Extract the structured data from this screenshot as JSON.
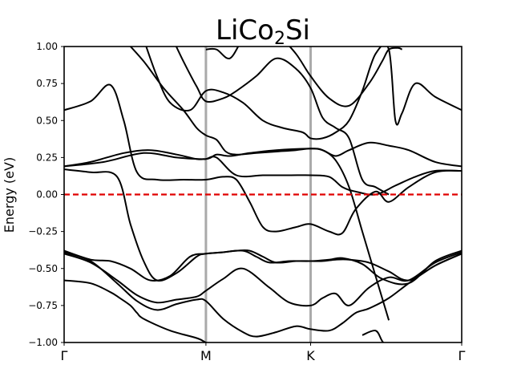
{
  "chart_data": {
    "type": "line",
    "title": "LiCo",
    "title_sub": "2",
    "title_tail": "Si",
    "ylabel": "Energy (eV)",
    "xlabel": "",
    "xlim": [
      0,
      3
    ],
    "ylim": [
      -1.0,
      1.0
    ],
    "yticks": [
      -1.0,
      -0.75,
      -0.5,
      -0.25,
      0.0,
      0.25,
      0.5,
      0.75,
      1.0
    ],
    "ytick_labels": [
      "−1.00",
      "−0.75",
      "−0.50",
      "−0.25",
      "0.00",
      "0.25",
      "0.50",
      "0.75",
      "1.00"
    ],
    "kpoints": [
      {
        "label": "Γ",
        "x": 0
      },
      {
        "label": "M",
        "x": 1.07
      },
      {
        "label": "K",
        "x": 1.86
      },
      {
        "label": "Γ",
        "x": 3
      }
    ],
    "fermi_level": 0.0,
    "colors": {
      "bands": "#000000",
      "fermi": "#e00000",
      "kline": "#aaaaaa"
    },
    "series": [
      {
        "x": [
          0,
          0.2,
          0.35,
          0.42,
          0.5,
          0.55,
          0.6,
          0.8,
          1.0,
          1.07,
          1.2,
          1.4,
          1.6,
          1.86,
          2.0,
          2.15,
          2.3,
          2.5,
          2.7,
          2.85,
          3.0
        ],
        "y": [
          -0.58,
          -0.6,
          -0.66,
          -0.7,
          -0.75,
          -0.8,
          -0.84,
          -0.92,
          -0.97,
          -1.0,
          -1.05,
          -1.1,
          -1.1,
          -1.1,
          -1.1,
          -1.1,
          -1.1,
          -1.1,
          -1.1,
          -1.1,
          -1.1
        ]
      },
      {
        "x": [
          0,
          0.2,
          0.4,
          0.55,
          0.7,
          0.85,
          1.0,
          1.07,
          1.2,
          1.35,
          1.45,
          1.6,
          1.75,
          1.86,
          2.0,
          2.1,
          2.2,
          2.3,
          2.45,
          2.6,
          2.8,
          3.0
        ],
        "y": [
          -0.39,
          -0.45,
          -0.6,
          -0.72,
          -0.78,
          -0.74,
          -0.71,
          -0.72,
          -0.84,
          -0.93,
          -0.96,
          -0.93,
          -0.89,
          -0.91,
          -0.92,
          -0.87,
          -0.8,
          -0.77,
          -0.7,
          -0.6,
          -0.48,
          -0.4
        ]
      },
      {
        "x": [
          0,
          0.2,
          0.4,
          0.55,
          0.7,
          0.85,
          1.0,
          1.07,
          1.2,
          1.35,
          1.55,
          1.7,
          1.86,
          1.95,
          2.05,
          2.15,
          2.3,
          2.45,
          2.6,
          2.8,
          3.0
        ],
        "y": [
          -0.4,
          -0.46,
          -0.58,
          -0.68,
          -0.73,
          -0.71,
          -0.69,
          -0.65,
          -0.57,
          -0.5,
          -0.63,
          -0.73,
          -0.75,
          -0.7,
          -0.67,
          -0.75,
          -0.63,
          -0.56,
          -0.58,
          -0.46,
          -0.39
        ]
      },
      {
        "x": [
          0,
          0.2,
          0.35,
          0.5,
          0.65,
          0.8,
          0.95,
          1.07,
          1.2,
          1.35,
          1.45,
          1.55,
          1.7,
          1.86,
          2.0,
          2.1,
          2.25,
          2.4,
          2.6,
          2.8,
          3.0
        ],
        "y": [
          -0.38,
          -0.44,
          -0.45,
          -0.5,
          -0.58,
          -0.55,
          -0.42,
          -0.4,
          -0.39,
          -0.38,
          -0.42,
          -0.46,
          -0.45,
          -0.45,
          -0.44,
          -0.43,
          -0.47,
          -0.57,
          -0.6,
          -0.45,
          -0.38
        ]
      },
      {
        "x": [
          0,
          0.2,
          0.4,
          0.5,
          0.6,
          0.7,
          0.85,
          1.0,
          1.07,
          1.2,
          1.3,
          1.4,
          1.5,
          1.6,
          1.75,
          1.86,
          1.95,
          2.05,
          2.15,
          2.3,
          2.45,
          2.6,
          2.8,
          3.0
        ],
        "y": [
          0.17,
          0.15,
          0.12,
          -0.2,
          -0.45,
          -0.58,
          -0.53,
          -0.42,
          -0.4,
          -0.39,
          -0.38,
          -0.38,
          -0.42,
          -0.46,
          -0.45,
          -0.45,
          -0.45,
          -0.44,
          -0.44,
          -0.46,
          -0.52,
          -0.58,
          -0.48,
          -0.4
        ]
      },
      {
        "x": [
          0,
          0.2,
          0.35,
          0.45,
          0.55,
          0.7,
          0.9,
          1.07,
          1.2,
          1.3,
          1.4,
          1.5,
          1.6,
          1.75,
          1.86,
          2.0,
          2.1,
          2.2,
          2.35,
          2.45,
          2.6,
          2.8,
          3.0
        ],
        "y": [
          0.57,
          0.63,
          0.74,
          0.5,
          0.15,
          0.1,
          0.1,
          0.1,
          0.12,
          0.1,
          -0.05,
          -0.22,
          -0.25,
          -0.22,
          -0.2,
          -0.25,
          -0.26,
          -0.1,
          0.02,
          -0.05,
          0.05,
          0.15,
          0.16
        ]
      },
      {
        "x": [
          0,
          0.2,
          0.45,
          0.65,
          0.85,
          1.0,
          1.07,
          1.15,
          1.3,
          1.5,
          1.7,
          1.86,
          2.0,
          2.1,
          2.2,
          2.35,
          2.5,
          2.65,
          2.8,
          3.0
        ],
        "y": [
          0.19,
          0.22,
          0.28,
          0.3,
          0.27,
          0.24,
          0.24,
          0.25,
          0.13,
          0.13,
          0.13,
          0.13,
          0.12,
          0.05,
          0.02,
          0.0,
          0.06,
          0.12,
          0.16,
          0.16
        ]
      },
      {
        "x": [
          0,
          0.3,
          0.6,
          0.85,
          1.07,
          1.15,
          1.25,
          1.4,
          1.6,
          1.86,
          1.95,
          2.05,
          2.15,
          2.3,
          2.45,
          2.6,
          2.8,
          3.0
        ],
        "y": [
          0.19,
          0.22,
          0.28,
          0.25,
          0.24,
          0.27,
          0.26,
          0.28,
          0.3,
          0.31,
          0.3,
          0.26,
          0.3,
          0.35,
          0.33,
          0.3,
          0.22,
          0.19
        ]
      },
      {
        "x": [
          0.45,
          0.6,
          0.75,
          0.9,
          1.0,
          1.07,
          1.15,
          1.22,
          1.3,
          1.45,
          1.6,
          1.75,
          1.86,
          1.95,
          2.05,
          2.15,
          2.25,
          2.35,
          2.45
        ],
        "y": [
          1.05,
          0.9,
          0.72,
          0.57,
          0.45,
          0.4,
          0.37,
          0.29,
          0.27,
          0.28,
          0.29,
          0.3,
          0.31,
          0.3,
          0.23,
          0.05,
          -0.25,
          -0.55,
          -0.85
        ]
      },
      {
        "x": [
          0.6,
          0.7,
          0.8,
          0.95,
          1.07,
          1.2,
          1.35,
          1.5,
          1.65,
          1.8,
          1.86,
          1.95,
          2.05,
          2.15,
          2.25,
          2.35,
          2.45,
          2.5,
          2.55,
          2.65,
          2.8,
          3.0
        ],
        "y": [
          1.05,
          0.8,
          0.62,
          0.57,
          0.7,
          0.69,
          0.62,
          0.5,
          0.45,
          0.42,
          0.38,
          0.38,
          0.42,
          0.5,
          0.7,
          0.95,
          0.98,
          0.5,
          0.55,
          0.75,
          0.66,
          0.57
        ]
      },
      {
        "x": [
          0.82,
          0.9,
          1.0,
          1.07,
          1.2,
          1.3,
          1.45,
          1.6,
          1.75,
          1.86,
          1.95,
          2.05,
          2.15,
          2.25,
          2.35,
          2.45
        ],
        "y": [
          1.05,
          0.9,
          0.73,
          0.63,
          0.65,
          0.7,
          0.8,
          0.92,
          0.85,
          0.72,
          0.52,
          0.45,
          0.38,
          0.1,
          0.05,
          0.0
        ]
      },
      {
        "x": [
          1.07,
          1.15,
          1.25,
          1.35,
          1.45
        ],
        "y": [
          0.98,
          0.98,
          0.92,
          1.05,
          1.1
        ]
      },
      {
        "x": [
          1.6,
          1.75,
          1.86,
          2.0,
          2.15,
          2.3,
          2.4,
          2.45,
          2.52,
          2.55
        ],
        "y": [
          1.1,
          0.95,
          0.8,
          0.65,
          0.6,
          0.75,
          0.9,
          0.98,
          0.99,
          0.98
        ]
      },
      {
        "x": [
          2.25,
          2.35,
          2.4,
          2.45
        ],
        "y": [
          -0.95,
          -0.92,
          -0.99,
          -1.05
        ]
      }
    ]
  }
}
